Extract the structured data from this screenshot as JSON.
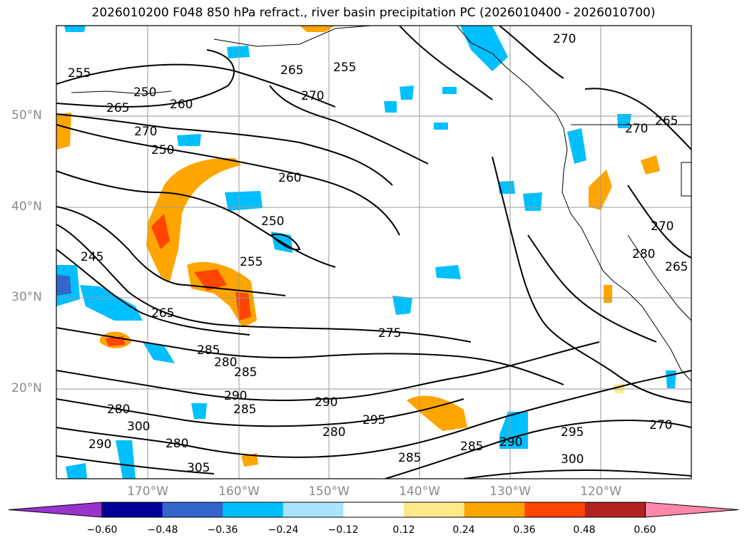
{
  "title": "2026010200 F048 850 hPa refract., river basin precipitation PC (2026010400 - 2026010700)",
  "lat_labels": [
    "50°N",
    "40°N",
    "30°N",
    "20°N"
  ],
  "lon_labels": [
    "170°W",
    "160°W",
    "150°W",
    "140°W",
    "130°W",
    "120°W"
  ],
  "contour_labels": [
    "255",
    "250",
    "265",
    "260",
    "270",
    "250",
    "260",
    "265",
    "255",
    "270",
    "250",
    "245",
    "255",
    "265",
    "275",
    "285",
    "280",
    "285",
    "290",
    "285",
    "290",
    "280",
    "295",
    "300",
    "280",
    "305",
    "290",
    "280",
    "285",
    "290",
    "295",
    "300",
    "270",
    "270",
    "270",
    "280",
    "265",
    "270",
    "265",
    "285"
  ],
  "colorbar": {
    "colors": [
      "#9933cc",
      "#000099",
      "#3366cc",
      "#00bfff",
      "#aae5ff",
      "#ffffff",
      "#ffe98a",
      "#ffa500",
      "#ff4500",
      "#b22222",
      "#ff88aa"
    ],
    "ticks": [
      "−0.60",
      "−0.48",
      "−0.36",
      "−0.24",
      "−0.12",
      "0.12",
      "0.24",
      "0.36",
      "0.48",
      "0.60"
    ]
  }
}
